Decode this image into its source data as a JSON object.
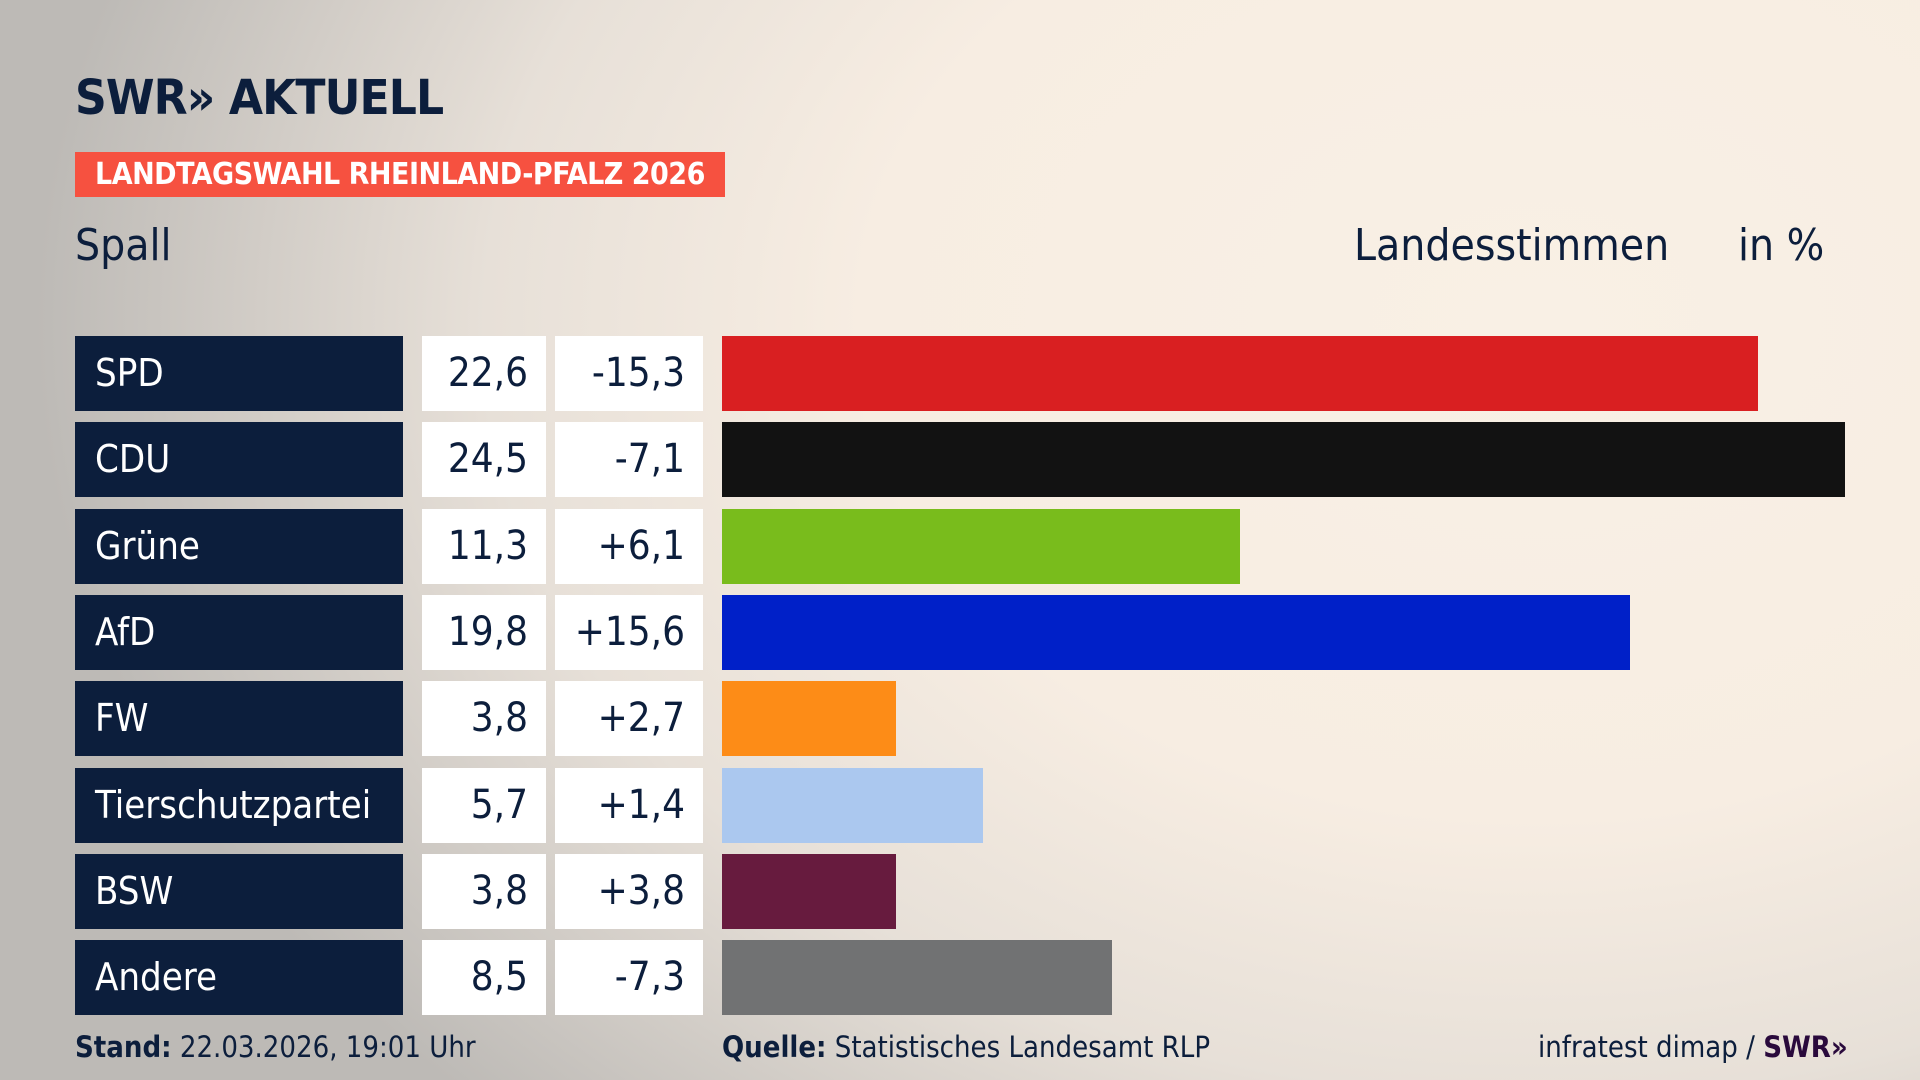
{
  "header": {
    "logo": "SWR» AKTUELL",
    "banner": "LANDTAGSWAHL RHEINLAND-PFALZ 2026",
    "subtitle_left": "Spall",
    "subtitle_mid": "Landesstimmen",
    "subtitle_right": "in %"
  },
  "chart_data": {
    "type": "bar",
    "orientation": "horizontal",
    "categories": [
      "SPD",
      "CDU",
      "Grüne",
      "AfD",
      "FW",
      "Tierschutzpartei",
      "BSW",
      "Andere"
    ],
    "values": [
      "22,6",
      "24,5",
      "11,3",
      "19,8",
      "3,8",
      "5,7",
      "3,8",
      "8,5"
    ],
    "numeric_values": [
      22.6,
      24.5,
      11.3,
      19.8,
      3.8,
      5.7,
      3.8,
      8.5
    ],
    "diffs": [
      "-15,3",
      "-7,1",
      "+6,1",
      "+15,6",
      "+2,7",
      "+1,4",
      "+3,8",
      "-7,3"
    ],
    "colors": [
      "#d91f21",
      "#121212",
      "#79bc1c",
      "#0020c8",
      "#fd8c17",
      "#abc8ef",
      "#671b3e",
      "#717273"
    ],
    "unit": "%"
  },
  "footer": {
    "stand_label": "Stand:",
    "stand_value": "22.03.2026, 19:01 Uhr",
    "source_label": "Quelle:",
    "source_value": "Statistisches Landesamt RLP",
    "credit": "infratest dimap / ",
    "credit_logo": "SWR»"
  }
}
